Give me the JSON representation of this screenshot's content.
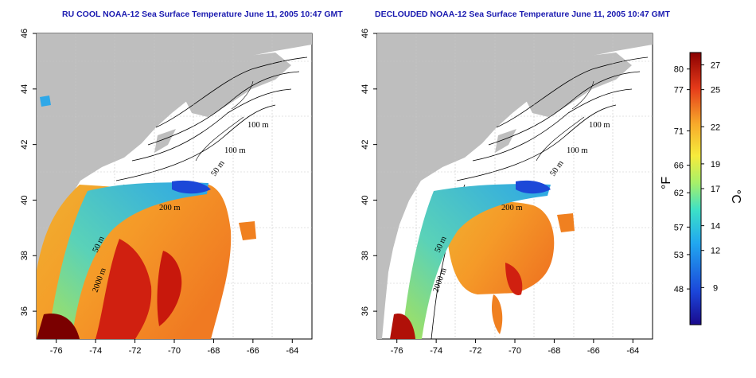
{
  "maps": [
    {
      "title": "RU COOL NOAA-12 Sea Surface Temperature June 11, 2005 10:47 GMT",
      "kind": "raw"
    },
    {
      "title": "DECLOUDED NOAA-12 Sea Surface Temperature June 11, 2005 10:47 GMT",
      "kind": "declouded"
    }
  ],
  "axes": {
    "lon_ticks": [
      "-76",
      "-74",
      "-72",
      "-70",
      "-68",
      "-66",
      "-64"
    ],
    "lat_ticks": [
      "36",
      "38",
      "40",
      "42",
      "44",
      "46"
    ],
    "lon_range": [
      -77,
      -63
    ],
    "lat_range": [
      35,
      46
    ]
  },
  "contour_labels": [
    "100 m",
    "100 m",
    "50 m",
    "200 m",
    "50 m",
    "2000 m"
  ],
  "colorbar": {
    "f_unit": "°F",
    "c_unit": "°C",
    "f_ticks": [
      "80",
      "77",
      "71",
      "66",
      "62",
      "57",
      "53",
      "48"
    ],
    "c_ticks": [
      "27",
      "25",
      "22",
      "19",
      "17",
      "14",
      "12",
      "9"
    ],
    "f_values": [
      80,
      77,
      71,
      66,
      62,
      57,
      53,
      48
    ],
    "c_values": [
      27,
      25,
      22,
      19,
      17,
      14,
      12,
      9
    ],
    "range_c": [
      6,
      28
    ],
    "colors": [
      "#1a0a8c",
      "#1b45d9",
      "#21a8f0",
      "#3ce0c8",
      "#a6f06a",
      "#f6ec3c",
      "#f7a82a",
      "#e53a1a",
      "#8a0000"
    ]
  }
}
